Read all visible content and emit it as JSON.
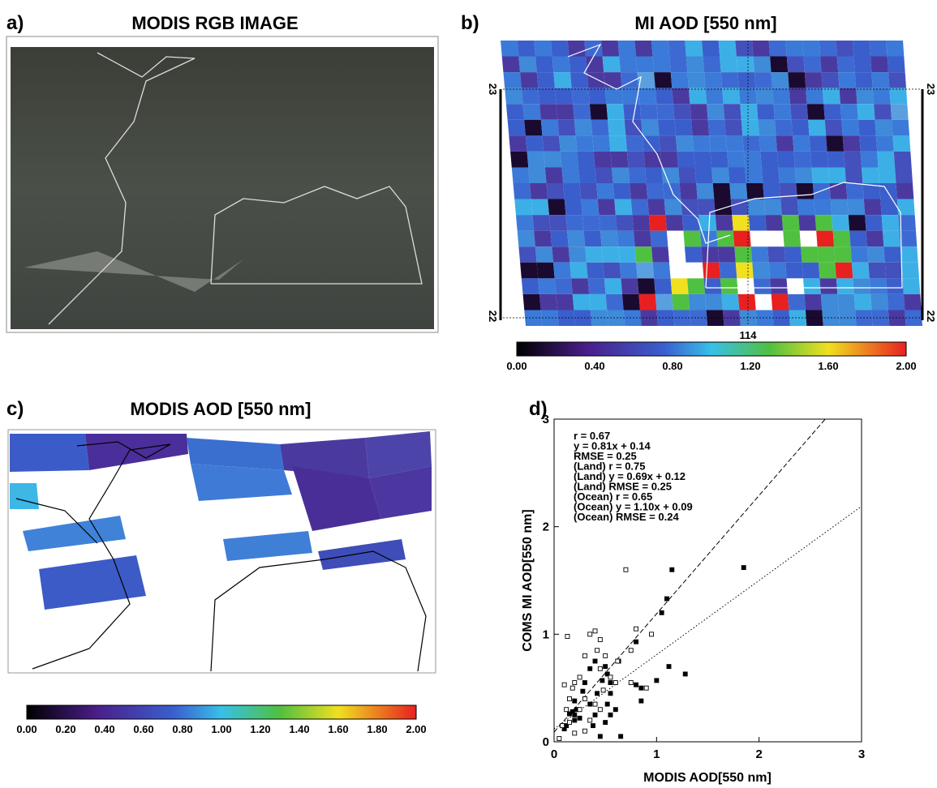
{
  "panels": [
    {
      "letter": "a)",
      "title": "MODIS RGB IMAGE"
    },
    {
      "letter": "b)",
      "title": "MI AOD [550 nm]",
      "lat_labels": [
        "23",
        "22"
      ],
      "lon_label": "114",
      "colorbar_ticks": [
        "0.00",
        "0.40",
        "0.80",
        "1.20",
        "1.60",
        "2.00"
      ]
    },
    {
      "letter": "c)",
      "title": "MODIS AOD [550 nm]",
      "colorbar_ticks": [
        "0.00",
        "0.20",
        "0.40",
        "0.60",
        "0.80",
        "1.00",
        "1.20",
        "1.40",
        "1.60",
        "1.80",
        "2.00"
      ]
    }
  ],
  "chart_data": {
    "type": "scatter",
    "letter": "d)",
    "xlabel": "MODIS AOD[550 nm]",
    "ylabel": "COMS MI AOD[550 nm]",
    "xlim": [
      0,
      3
    ],
    "ylim": [
      0,
      3
    ],
    "xticks": [
      0,
      1,
      2,
      3
    ],
    "yticks": [
      0,
      1,
      2,
      3
    ],
    "annotations": [
      "r = 0.67",
      "y = 0.81x + 0.14",
      "RMSE = 0.25",
      "(Land) r = 0.75",
      "(Land) y = 0.69x + 0.12",
      "(Land) RMSE = 0.25",
      "(Ocean) r = 0.65",
      "(Ocean) y = 1.10x + 0.09",
      "(Ocean) RMSE = 0.24"
    ],
    "fit_lines": [
      {
        "slope": 1.1,
        "intercept": 0.09,
        "style": "dashed"
      },
      {
        "slope": 0.69,
        "intercept": 0.12,
        "style": "dotted"
      }
    ],
    "series": [
      {
        "marker": "filled",
        "color": "#000000",
        "x": [
          1.85,
          1.15,
          1.1,
          1.05,
          0.8,
          1.12,
          1.28,
          1.0,
          0.8,
          0.85,
          0.85,
          0.63,
          0.5,
          0.52,
          0.55,
          0.47,
          0.4,
          0.35,
          0.3,
          0.28,
          0.2,
          0.22,
          0.18,
          0.15,
          0.2,
          0.25,
          0.12,
          0.1,
          0.35,
          0.4,
          0.55,
          0.52,
          0.5,
          0.55,
          0.6,
          0.65,
          0.45,
          0.38,
          0.42,
          0.2
        ],
        "values": [
          1.62,
          1.6,
          1.33,
          1.2,
          0.93,
          0.7,
          0.63,
          0.57,
          0.53,
          0.5,
          0.38,
          0.75,
          0.7,
          0.63,
          0.55,
          0.57,
          0.75,
          0.68,
          0.55,
          0.47,
          0.38,
          0.3,
          0.28,
          0.26,
          0.25,
          0.22,
          0.15,
          0.12,
          0.35,
          0.25,
          0.45,
          0.35,
          0.18,
          0.25,
          0.3,
          0.05,
          0.05,
          0.15,
          0.45,
          0.2
        ]
      },
      {
        "marker": "open",
        "color": "#000000",
        "x": [
          0.7,
          0.95,
          0.8,
          0.75,
          0.4,
          0.35,
          0.45,
          0.13,
          0.42,
          0.45,
          0.5,
          0.3,
          0.25,
          0.2,
          0.1,
          0.18,
          0.3,
          0.15,
          0.25,
          0.05,
          0.08,
          0.15,
          0.35,
          0.4,
          0.55,
          0.62,
          0.45,
          0.3,
          0.2,
          0.12,
          0.6,
          0.75,
          0.9,
          0.48
        ],
        "values": [
          1.6,
          1.0,
          1.05,
          0.85,
          1.03,
          1.0,
          0.95,
          0.98,
          0.85,
          0.68,
          0.8,
          0.8,
          0.6,
          0.55,
          0.53,
          0.5,
          0.4,
          0.4,
          0.3,
          0.03,
          0.15,
          0.18,
          0.2,
          0.35,
          0.6,
          0.75,
          0.3,
          0.1,
          0.08,
          0.3,
          0.55,
          0.55,
          0.5,
          0.48
        ]
      }
    ]
  }
}
